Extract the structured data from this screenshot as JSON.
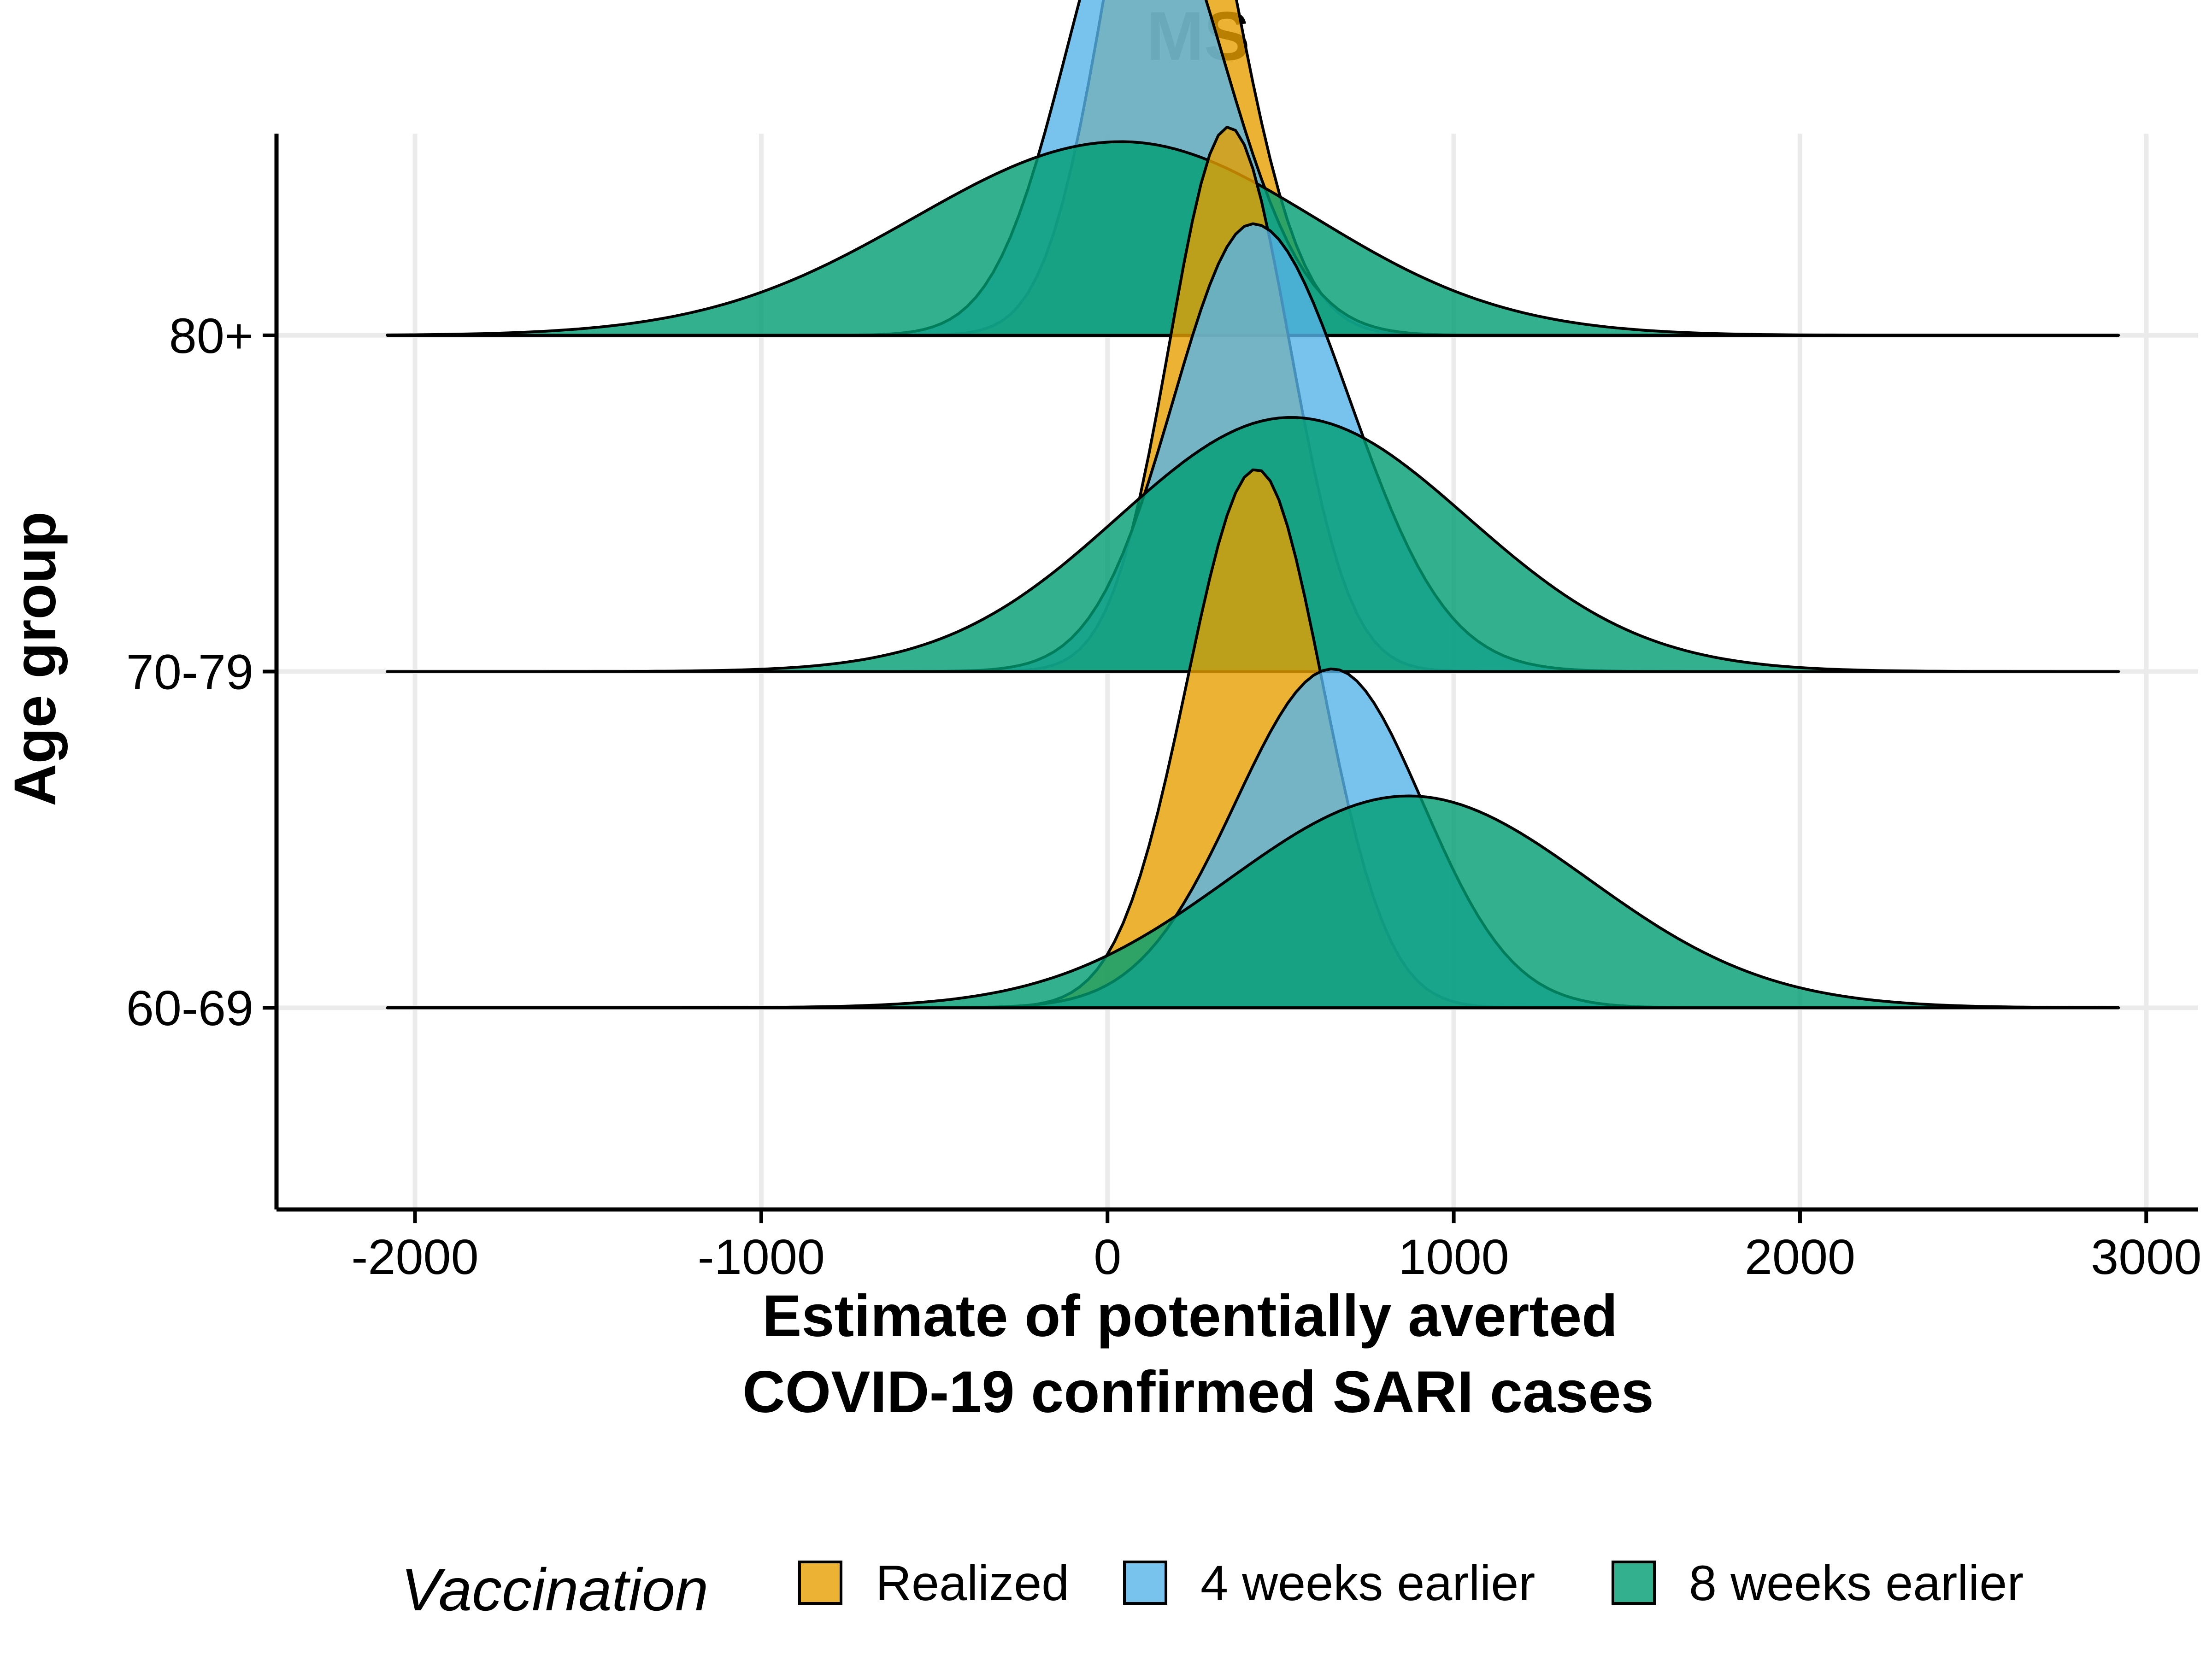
{
  "chart_data": {
    "type": "ridgeline",
    "title": "MS",
    "xlabel_lines": [
      "Estimate of potentially averted",
      "COVID-19 confirmed SARI cases"
    ],
    "ylabel": "Age group",
    "xlim": [
      -2400,
      3150
    ],
    "x_ticks": [
      -2000,
      -1000,
      0,
      1000,
      2000,
      3000
    ],
    "x_tick_labels": [
      "-2000",
      "-1000",
      "0",
      "1000",
      "2000",
      "3000"
    ],
    "categories": [
      "60-69",
      "70-79",
      "80+"
    ],
    "ylim": [
      -0.6,
      2.6
    ],
    "ridge_scale": 1.8,
    "grid": true,
    "legend": {
      "title": "Vaccination",
      "position": "bottom",
      "labels": [
        "Realized",
        "4 weeks earlier",
        "8 weeks earlier"
      ]
    },
    "series": [
      {
        "name": "Realized",
        "color": "#E69F00",
        "groups": [
          {
            "category": "60-69",
            "peak_x": 430,
            "sd_left": 200,
            "sd_right": 190,
            "height": 0.89
          },
          {
            "category": "70-79",
            "peak_x": 350,
            "sd_left": 170,
            "sd_right": 175,
            "height": 0.9
          },
          {
            "category": "80+",
            "peak_x": 170,
            "sd_left": 175,
            "sd_right": 195,
            "height": 0.95
          }
        ]
      },
      {
        "name": "4 weeks earlier",
        "color": "#56B4E9",
        "groups": [
          {
            "category": "60-69",
            "peak_x": 650,
            "sd_left": 280,
            "sd_right": 260,
            "height": 0.56
          },
          {
            "category": "70-79",
            "peak_x": 420,
            "sd_left": 230,
            "sd_right": 280,
            "height": 0.74
          },
          {
            "category": "80+",
            "peak_x": 90,
            "sd_left": 210,
            "sd_right": 240,
            "height": 0.77
          }
        ]
      },
      {
        "name": "8 weeks earlier",
        "color": "#009E73",
        "groups": [
          {
            "category": "60-69",
            "peak_x": 870,
            "sd_left": 520,
            "sd_right": 520,
            "height": 0.35
          },
          {
            "category": "70-79",
            "peak_x": 530,
            "sd_left": 500,
            "sd_right": 510,
            "height": 0.42
          },
          {
            "category": "80+",
            "peak_x": 40,
            "sd_left": 600,
            "sd_right": 560,
            "height": 0.32
          }
        ]
      }
    ]
  }
}
